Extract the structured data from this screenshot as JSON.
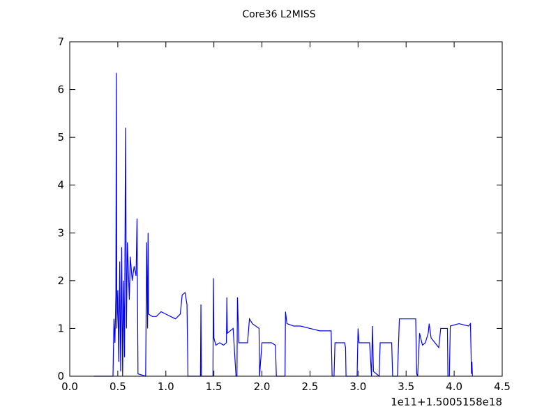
{
  "chart_data": {
    "type": "line",
    "title": "Core36 L2MISS",
    "x_offset_label": "1e11+1.5005158e18",
    "color": "#0000ff",
    "x": [
      0.25,
      0.45,
      0.46,
      0.47,
      0.48,
      0.485,
      0.49,
      0.5,
      0.51,
      0.52,
      0.53,
      0.54,
      0.55,
      0.56,
      0.57,
      0.58,
      0.59,
      0.6,
      0.62,
      0.63,
      0.65,
      0.67,
      0.69,
      0.7,
      0.71,
      0.79,
      0.8,
      0.81,
      0.815,
      0.82,
      0.86,
      0.9,
      0.95,
      1.0,
      1.05,
      1.1,
      1.15,
      1.17,
      1.2,
      1.22,
      1.23,
      1.36,
      1.365,
      1.37,
      1.49,
      1.495,
      1.5,
      1.52,
      1.56,
      1.6,
      1.63,
      1.635,
      1.64,
      1.7,
      1.73,
      1.74,
      1.745,
      1.76,
      1.85,
      1.87,
      1.9,
      1.97,
      1.975,
      2.0,
      2.1,
      2.14,
      2.15,
      2.24,
      2.245,
      2.26,
      2.33,
      2.4,
      2.5,
      2.6,
      2.72,
      2.73,
      2.75,
      2.76,
      2.86,
      2.87,
      2.875,
      2.99,
      3.0,
      3.01,
      3.12,
      3.14,
      3.15,
      3.16,
      3.22,
      3.23,
      3.35,
      3.36,
      3.41,
      3.43,
      3.5,
      3.6,
      3.61,
      3.62,
      3.64,
      3.67,
      3.7,
      3.73,
      3.74,
      3.76,
      3.8,
      3.84,
      3.86,
      3.9,
      3.93,
      3.935,
      3.95,
      3.96,
      4.05,
      4.15,
      4.17,
      4.18,
      4.185,
      4.19
    ],
    "values": [
      0,
      0,
      1.2,
      0.7,
      1.7,
      6.35,
      1.0,
      1.8,
      0.3,
      2.4,
      0.1,
      2.7,
      0,
      2.0,
      0.4,
      5.2,
      1.0,
      2.8,
      1.6,
      2.5,
      2.0,
      2.3,
      2.1,
      3.3,
      0.05,
      0,
      2.8,
      1.0,
      3.0,
      1.3,
      1.25,
      1.25,
      1.35,
      1.3,
      1.25,
      1.2,
      1.3,
      1.7,
      1.75,
      1.5,
      0,
      0,
      1.5,
      0,
      0,
      2.05,
      0.8,
      0.65,
      0.7,
      0.65,
      0.7,
      1.65,
      0.9,
      1.0,
      0,
      0,
      1.65,
      0.7,
      0.7,
      1.2,
      1.1,
      1.0,
      0,
      0.7,
      0.7,
      0.65,
      0,
      0,
      1.35,
      1.1,
      1.05,
      1.05,
      1.0,
      0.95,
      0.95,
      0,
      0,
      0.7,
      0.7,
      0.6,
      0,
      0,
      1.0,
      0.7,
      0.7,
      0,
      1.05,
      0.1,
      0,
      0.7,
      0.7,
      0,
      0,
      1.2,
      1.2,
      1.2,
      0.05,
      0,
      0.9,
      0.65,
      0.7,
      0.9,
      1.1,
      0.8,
      0.7,
      0.6,
      1.0,
      1.0,
      1.0,
      0,
      0,
      1.05,
      1.1,
      1.05,
      1.1,
      0.05,
      0.3,
      0
    ],
    "xlim": [
      0,
      4.5
    ],
    "xticks": [
      {
        "value": 0,
        "label": "0.0"
      },
      0.5,
      {
        "value": 1,
        "label": "1.0"
      },
      1.5,
      {
        "value": 2,
        "label": "2.0"
      },
      2.5,
      {
        "value": 3,
        "label": "3.0"
      },
      3.5,
      {
        "value": 4,
        "label": "4.0"
      },
      4.5
    ],
    "ylim": [
      0,
      7
    ],
    "yticks": [
      0,
      1,
      2,
      3,
      4,
      5,
      6,
      7
    ]
  }
}
